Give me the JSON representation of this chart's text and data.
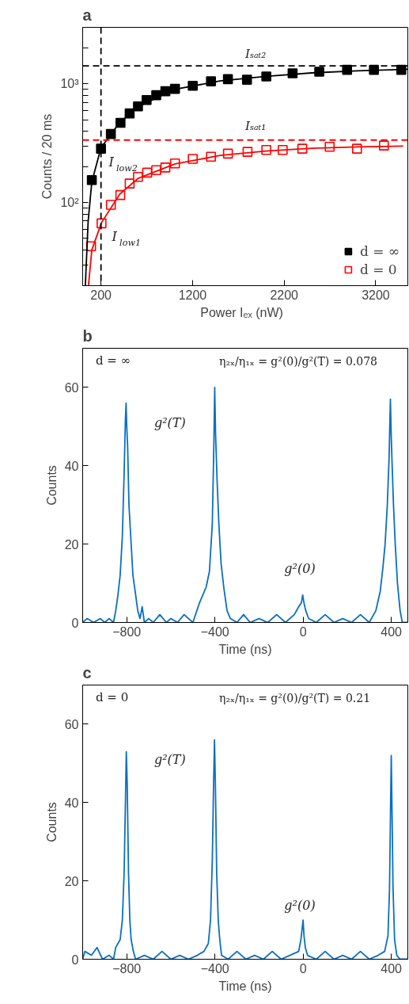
{
  "chart_data": [
    {
      "type": "scatter",
      "title": "a",
      "xlabel": "Power  Iₑₓ  (nW)",
      "ylabel": "Counts / 20 ms",
      "log": "y",
      "xlim": [
        0,
        3550
      ],
      "ylim": [
        20,
        3000
      ],
      "xticks": [
        200,
        1200,
        2200,
        3200
      ],
      "yticks": [
        {
          "value": 20,
          "label": null
        },
        {
          "value": 30,
          "label": null
        },
        {
          "value": 40,
          "label": null
        },
        {
          "value": 50,
          "label": null
        },
        {
          "value": 60,
          "label": null
        },
        {
          "value": 70,
          "label": null
        },
        {
          "value": 80,
          "label": null
        },
        {
          "value": 90,
          "label": null
        },
        {
          "value": 100,
          "label": "10²"
        },
        {
          "value": 200,
          "label": null
        },
        {
          "value": 300,
          "label": null
        },
        {
          "value": 400,
          "label": null
        },
        {
          "value": 500,
          "label": null
        },
        {
          "value": 600,
          "label": null
        },
        {
          "value": 700,
          "label": null
        },
        {
          "value": 800,
          "label": null
        },
        {
          "value": 900,
          "label": null
        },
        {
          "value": 1000,
          "label": "10³"
        },
        {
          "value": 2000,
          "label": null
        }
      ],
      "legend": "bottom right",
      "grid": false,
      "series": [
        {
          "name": "d = ∞",
          "type": "scatter",
          "marker": "square",
          "color": "#000000",
          "x": [
            100,
            200,
            308,
            413,
            513,
            604,
            698,
            803,
            903,
            1008,
            1202,
            1401,
            1586,
            1794,
            2005,
            2292,
            2583,
            2887,
            3180,
            3479
          ],
          "values": [
            155,
            285,
            379,
            471,
            565,
            647,
            733,
            804,
            869,
            910,
            965,
            1053,
            1098,
            1086,
            1156,
            1231,
            1270,
            1315,
            1315,
            1315
          ]
        },
        {
          "name": "d = 0",
          "type": "scatter",
          "marker": "square_open",
          "color": "#ff0000",
          "x": [
            92,
            206,
            308,
            411,
            513,
            604,
            704,
            803,
            903,
            1008,
            1202,
            1401,
            1586,
            1800,
            2005,
            2184,
            2398,
            2697,
            2995,
            3289
          ],
          "values": [
            43,
            67,
            96,
            116,
            145,
            165,
            179,
            188,
            198,
            214,
            234,
            244,
            259,
            268,
            278,
            278,
            285,
            296,
            285,
            303
          ]
        },
        {
          "type": "line",
          "line_style": "solid",
          "color": "#000000",
          "x": [
            29,
            60,
            100,
            200,
            400,
            600,
            1000,
            1500,
            2000,
            2500,
            3000,
            3550
          ],
          "values": [
            20,
            70,
            150,
            290,
            470,
            640,
            900,
            1060,
            1160,
            1240,
            1290,
            1330
          ]
        },
        {
          "type": "line",
          "line_style": "solid",
          "color": "#ff0000",
          "x": [
            63,
            100,
            206,
            405,
            604,
            1008,
            1500,
            2000,
            2500,
            3000,
            3500
          ],
          "values": [
            20,
            40,
            68,
            118,
            160,
            212,
            250,
            272,
            287,
            295,
            300
          ]
        }
      ],
      "ref_lines": [
        {
          "axis": "x",
          "value": 200,
          "color": "#000000",
          "line_style": "dashed"
        },
        {
          "axis": "y",
          "value": 1420,
          "color": "#000000",
          "line_style": "dashed"
        },
        {
          "axis": "y",
          "value": 337,
          "color": "#ff0000",
          "line_style": "dashed"
        }
      ],
      "annotations": [
        "Iₛₐₜ₂",
        "Iₛₐₜ₁",
        "I$_{low2}$",
        "I$_{low1}$"
      ]
    },
    {
      "type": "line",
      "title": "b",
      "xlabel": "Time (ns)",
      "ylabel": "Counts",
      "xlim": [
        -1000,
        475
      ],
      "ylim": [
        0,
        70
      ],
      "xticks": [
        -800,
        -400,
        0,
        400
      ],
      "yticks": [
        0,
        20,
        40,
        60
      ],
      "grid": false,
      "legend": false,
      "series": [
        {
          "color": "#0a6fc2",
          "line_style": "solid",
          "x": [
            -1000,
            -980,
            -950,
            -920,
            -900,
            -880,
            -860,
            -850,
            -840,
            -830,
            -820,
            -812,
            -806,
            -803,
            -800,
            -796,
            -790,
            -782,
            -772,
            -762,
            -750,
            -740,
            -730,
            -720,
            -700,
            -680,
            -650,
            -620,
            -600,
            -570,
            -540,
            -500,
            -470,
            -455,
            -440,
            -425,
            -412,
            -405,
            -401,
            -397,
            -390,
            -382,
            -372,
            -360,
            -345,
            -330,
            -300,
            -270,
            -240,
            -200,
            -160,
            -120,
            -80,
            -40,
            -20,
            -8,
            -2,
            4,
            12,
            25,
            60,
            100,
            140,
            180,
            220,
            260,
            300,
            330,
            350,
            362,
            372,
            382,
            390,
            396,
            400,
            404,
            410,
            418,
            428,
            440,
            450,
            475
          ],
          "values": [
            0,
            1,
            0,
            1,
            0,
            1,
            0,
            3,
            7,
            12,
            22,
            38,
            52,
            56,
            50,
            45,
            30,
            22,
            12,
            8,
            3,
            1,
            4,
            0,
            1,
            0,
            2,
            0,
            1,
            0,
            2,
            0,
            5,
            7,
            9,
            13,
            25,
            45,
            60,
            48,
            36,
            25,
            15,
            9,
            3,
            1,
            0,
            2,
            0,
            1,
            0,
            2,
            0,
            2,
            4,
            5,
            7,
            5,
            3,
            1,
            0,
            2,
            0,
            1,
            0,
            2,
            0,
            3,
            8,
            14,
            20,
            30,
            42,
            57,
            47,
            40,
            30,
            20,
            10,
            3,
            0,
            0
          ]
        }
      ],
      "annotations": [
        "d = ∞",
        "η₂ₓ/η₁ₓ = g²(0)/g²(T) = 0.078",
        "g²(T)",
        "g²(0)"
      ]
    },
    {
      "type": "line",
      "title": "c",
      "xlabel": "Time (ns)",
      "ylabel": "Counts",
      "xlim": [
        -1000,
        475
      ],
      "ylim": [
        0,
        70
      ],
      "xticks": [
        -800,
        -400,
        0,
        400
      ],
      "yticks": [
        0,
        20,
        40,
        60
      ],
      "grid": false,
      "legend": false,
      "series": [
        {
          "color": "#0a6fc2",
          "line_style": "solid",
          "x": [
            -1000,
            -990,
            -960,
            -935,
            -910,
            -880,
            -860,
            -850,
            -830,
            -820,
            -812,
            -806,
            -802,
            -798,
            -792,
            -786,
            -780,
            -770,
            -760,
            -720,
            -680,
            -640,
            -600,
            -560,
            -520,
            -480,
            -450,
            -430,
            -420,
            -412,
            -406,
            -402,
            -398,
            -392,
            -385,
            -378,
            -370,
            -340,
            -300,
            -260,
            -220,
            -180,
            -140,
            -100,
            -60,
            -20,
            -10,
            -4,
            0,
            4,
            10,
            20,
            60,
            100,
            140,
            180,
            220,
            260,
            300,
            340,
            370,
            385,
            392,
            397,
            400,
            404,
            408,
            415,
            425,
            440,
            475
          ],
          "values": [
            0,
            2,
            1,
            3,
            0,
            1,
            0,
            3,
            5,
            10,
            22,
            40,
            53,
            45,
            22,
            10,
            5,
            2,
            0,
            1,
            0,
            2,
            0,
            1,
            0,
            1,
            2,
            4,
            10,
            25,
            45,
            56,
            45,
            22,
            10,
            5,
            1,
            0,
            2,
            0,
            1,
            0,
            2,
            0,
            1,
            2,
            5,
            8,
            10,
            6,
            3,
            1,
            0,
            2,
            0,
            1,
            0,
            2,
            0,
            1,
            2,
            6,
            18,
            40,
            52,
            35,
            18,
            5,
            1,
            0,
            0
          ]
        }
      ],
      "annotations": [
        "d = 0",
        "η₂ₓ/η₁ₓ = g²(0)/g²(T) = 0.21",
        "g²(T)",
        "g²(0)"
      ]
    }
  ]
}
